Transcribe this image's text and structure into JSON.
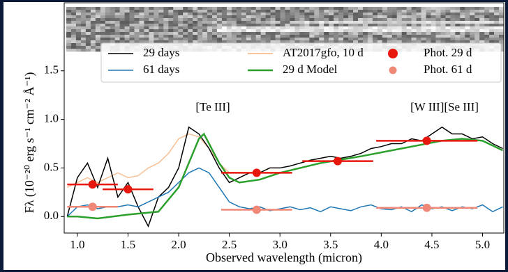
{
  "chart_data": {
    "type": "line",
    "annotations": [
      "[Te III]",
      "[W III][Se III]"
    ],
    "xlabel": "Observed wavelength (micron)",
    "ylabel": "Fλ (10⁻²⁰ erg s⁻¹ cm⁻² Å⁻¹)",
    "xlim": [
      0.87,
      5.21
    ],
    "ylim": [
      -0.17,
      2.2
    ],
    "xticks": [
      {
        "value": 1,
        "label": "1.0"
      },
      {
        "value": 1.5,
        "label": "1.5"
      },
      {
        "value": 2,
        "label": "2.0"
      },
      {
        "value": 2.5,
        "label": "2.5"
      },
      {
        "value": 3,
        "label": "3.0"
      },
      {
        "value": 3.5,
        "label": "3.5"
      },
      {
        "value": 4,
        "label": "4.0"
      },
      {
        "value": 4.5,
        "label": "4.5"
      },
      {
        "value": 5,
        "label": "5.0"
      }
    ],
    "yticks": [
      {
        "value": 0,
        "label": "0.0"
      },
      {
        "value": 0.5,
        "label": "0.5"
      },
      {
        "value": 1,
        "label": "1.0"
      },
      {
        "value": 1.5,
        "label": "1.5"
      }
    ],
    "series": [
      {
        "name": "29 days",
        "color": "#000000",
        "marker": "none",
        "x": [
          0.9,
          1.0,
          1.1,
          1.2,
          1.3,
          1.4,
          1.5,
          1.6,
          1.7,
          1.8,
          1.9,
          2.0,
          2.1,
          2.2,
          2.3,
          2.4,
          2.5,
          2.6,
          2.7,
          2.8,
          2.9,
          3.0,
          3.1,
          3.2,
          3.3,
          3.4,
          3.5,
          3.6,
          3.7,
          3.8,
          3.9,
          4.0,
          4.1,
          4.2,
          4.3,
          4.4,
          4.5,
          4.6,
          4.7,
          4.8,
          4.9,
          5.0,
          5.1,
          5.2
        ],
        "values": [
          0.0,
          0.4,
          0.55,
          0.3,
          0.6,
          0.2,
          0.35,
          0.1,
          -0.1,
          0.2,
          0.3,
          0.5,
          0.92,
          0.85,
          0.7,
          0.5,
          0.35,
          0.4,
          0.45,
          0.45,
          0.5,
          0.5,
          0.52,
          0.55,
          0.58,
          0.6,
          0.62,
          0.6,
          0.62,
          0.65,
          0.7,
          0.72,
          0.75,
          0.75,
          0.8,
          0.78,
          0.85,
          0.92,
          0.85,
          0.85,
          0.8,
          0.82,
          0.75,
          0.7
        ]
      },
      {
        "name": "61 days",
        "color": "#1f77b4",
        "marker": "none",
        "x": [
          0.9,
          1.0,
          1.1,
          1.2,
          1.3,
          1.4,
          1.5,
          1.6,
          1.7,
          1.8,
          1.9,
          2.0,
          2.1,
          2.2,
          2.3,
          2.4,
          2.5,
          2.6,
          2.7,
          2.8,
          2.9,
          3.0,
          3.1,
          3.2,
          3.3,
          3.4,
          3.5,
          3.6,
          3.7,
          3.8,
          3.9,
          4.0,
          4.1,
          4.2,
          4.3,
          4.4,
          4.5,
          4.6,
          4.7,
          4.8,
          4.9,
          5.0,
          5.1,
          5.2
        ],
        "values": [
          0.0,
          0.1,
          0.12,
          0.08,
          0.1,
          0.1,
          0.12,
          0.1,
          0.15,
          0.2,
          0.25,
          0.35,
          0.45,
          0.5,
          0.45,
          0.3,
          0.15,
          0.1,
          0.08,
          0.1,
          0.06,
          0.08,
          0.1,
          0.07,
          0.09,
          0.05,
          0.1,
          0.08,
          0.06,
          0.1,
          0.12,
          0.08,
          0.07,
          0.1,
          0.05,
          0.12,
          0.08,
          0.1,
          0.06,
          0.1,
          0.08,
          0.12,
          0.05,
          0.1
        ]
      },
      {
        "name": "AT2017gfo, 10 d",
        "color": "#f5b07a",
        "marker": "none",
        "x": [
          0.9,
          1.0,
          1.1,
          1.2,
          1.3,
          1.4,
          1.5,
          1.6,
          1.7,
          1.8,
          1.9,
          2.0,
          2.1,
          2.2,
          2.3,
          2.4,
          2.5
        ],
        "values": [
          0.3,
          0.35,
          0.4,
          0.35,
          0.4,
          0.45,
          0.4,
          0.42,
          0.5,
          0.55,
          0.65,
          0.8,
          0.85,
          0.82,
          0.7,
          0.55,
          0.45
        ]
      },
      {
        "name": "29 d Model",
        "color": "#2ca02c",
        "marker": "none",
        "x": [
          0.9,
          1.0,
          1.2,
          1.5,
          1.8,
          2.0,
          2.1,
          2.2,
          2.25,
          2.3,
          2.4,
          2.5,
          2.6,
          2.8,
          3.0,
          3.4,
          3.8,
          4.2,
          4.6,
          4.8,
          5.0,
          5.2
        ],
        "values": [
          0.0,
          0.0,
          -0.02,
          0.02,
          0.05,
          0.3,
          0.55,
          0.8,
          0.85,
          0.75,
          0.55,
          0.4,
          0.35,
          0.38,
          0.45,
          0.55,
          0.62,
          0.7,
          0.78,
          0.8,
          0.78,
          0.68
        ]
      },
      {
        "name": "Phot. 29 d",
        "color": "#e8170e",
        "marker": "o",
        "x": [
          1.15,
          1.5,
          2.77,
          3.57,
          4.45
        ],
        "values": [
          0.33,
          0.28,
          0.45,
          0.57,
          0.78
        ],
        "xerr": [
          0.25,
          0.25,
          0.35,
          0.35,
          0.5
        ]
      },
      {
        "name": "Phot. 61 d",
        "color": "#f08878",
        "marker": "o",
        "x": [
          1.15,
          2.77,
          4.45
        ],
        "values": [
          0.1,
          0.07,
          0.09
        ],
        "xerr": [
          0.25,
          0.35,
          0.5
        ]
      }
    ]
  }
}
